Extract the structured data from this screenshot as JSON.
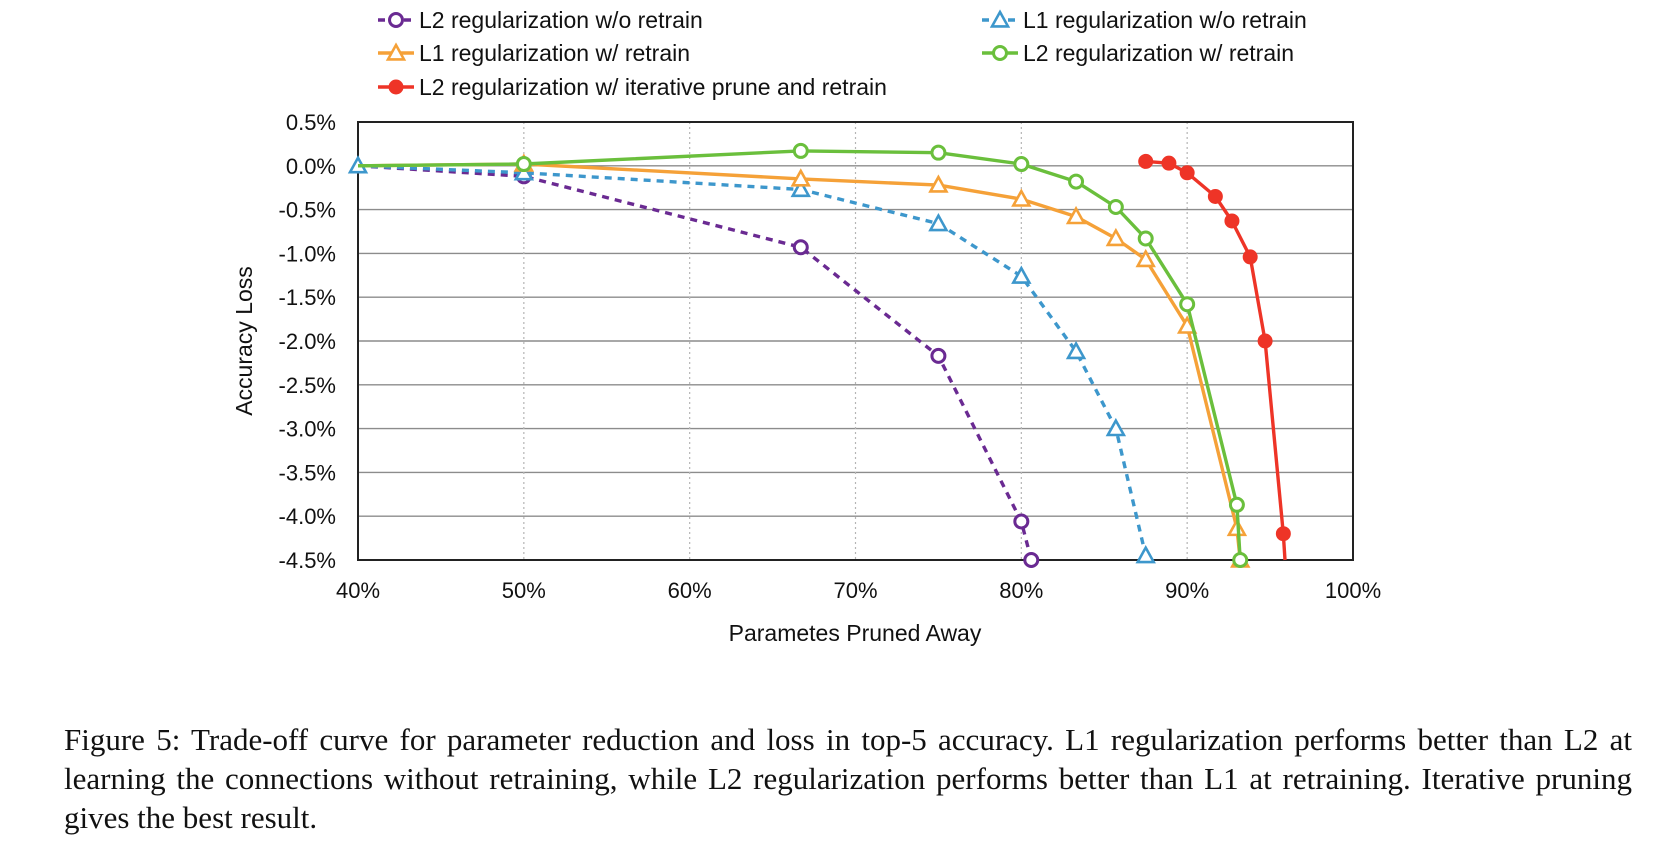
{
  "chart_data": {
    "type": "line",
    "xlabel": "Parametes Pruned Away",
    "ylabel": "Accuracy Loss",
    "xlim": [
      40,
      100
    ],
    "ylim": [
      -4.5,
      0.5
    ],
    "x_ticks": [
      "40%",
      "50%",
      "60%",
      "70%",
      "80%",
      "90%",
      "100%"
    ],
    "y_ticks": [
      "0.5%",
      "0.0%",
      "-0.5%",
      "-1.0%",
      "-1.5%",
      "-2.0%",
      "-2.5%",
      "-3.0%",
      "-3.5%",
      "-4.0%",
      "-4.5%"
    ],
    "legend_position": "top",
    "series": [
      {
        "name": "L2 regularization w/o retrain",
        "color": "#6a2a92",
        "dashed": true,
        "marker": "circle-open",
        "x": [
          40,
          50,
          66.7,
          75,
          80,
          80.6
        ],
        "y": [
          0.0,
          -0.12,
          -0.93,
          -2.17,
          -4.06,
          -4.5
        ],
        "marker_count": 5
      },
      {
        "name": "L1 regularization w/o retrain",
        "color": "#3d97cc",
        "dashed": true,
        "marker": "triangle-open",
        "x": [
          40,
          50,
          66.7,
          75,
          80,
          83.3,
          85.7,
          87.5
        ],
        "y": [
          0.0,
          -0.08,
          -0.27,
          -0.66,
          -1.26,
          -2.12,
          -3.0,
          -4.45
        ],
        "marker_count": 8
      },
      {
        "name": "L1 regularization w/ retrain",
        "color": "#f5a138",
        "dashed": false,
        "marker": "triangle-open",
        "x": [
          40,
          50,
          66.7,
          75,
          80,
          83.3,
          85.7,
          87.5,
          90,
          93,
          93.2
        ],
        "y": [
          0.0,
          0.02,
          -0.15,
          -0.22,
          -0.38,
          -0.58,
          -0.83,
          -1.07,
          -1.83,
          -4.14,
          -4.5
        ],
        "marker_count": 10
      },
      {
        "name": "L2 regularization w/ retrain",
        "color": "#6abf3c",
        "dashed": false,
        "marker": "circle-open",
        "x": [
          40,
          50,
          66.7,
          75,
          80,
          83.3,
          85.7,
          87.5,
          90,
          93,
          93.2
        ],
        "y": [
          0.0,
          0.02,
          0.17,
          0.15,
          0.02,
          -0.18,
          -0.47,
          -0.83,
          -1.58,
          -3.87,
          -4.5
        ],
        "marker_count": 10
      },
      {
        "name": "L2 regularization w/ iterative prune and retrain",
        "color": "#ee3427",
        "dashed": false,
        "marker": "circle-filled",
        "x": [
          87.5,
          88.9,
          90,
          91.7,
          92.7,
          93.8,
          94.7,
          95.8,
          95.9
        ],
        "y": [
          0.05,
          0.03,
          -0.08,
          -0.35,
          -0.63,
          -1.04,
          -2.0,
          -4.2,
          -4.5
        ],
        "marker_count": 8
      }
    ]
  },
  "caption": "Figure 5: Trade-off curve for parameter reduction and loss in top-5 accuracy. L1 regularization performs better than L2 at learning the connections without retraining, while L2 regularization performs better than L1 at retraining. Iterative pruning gives the best result."
}
